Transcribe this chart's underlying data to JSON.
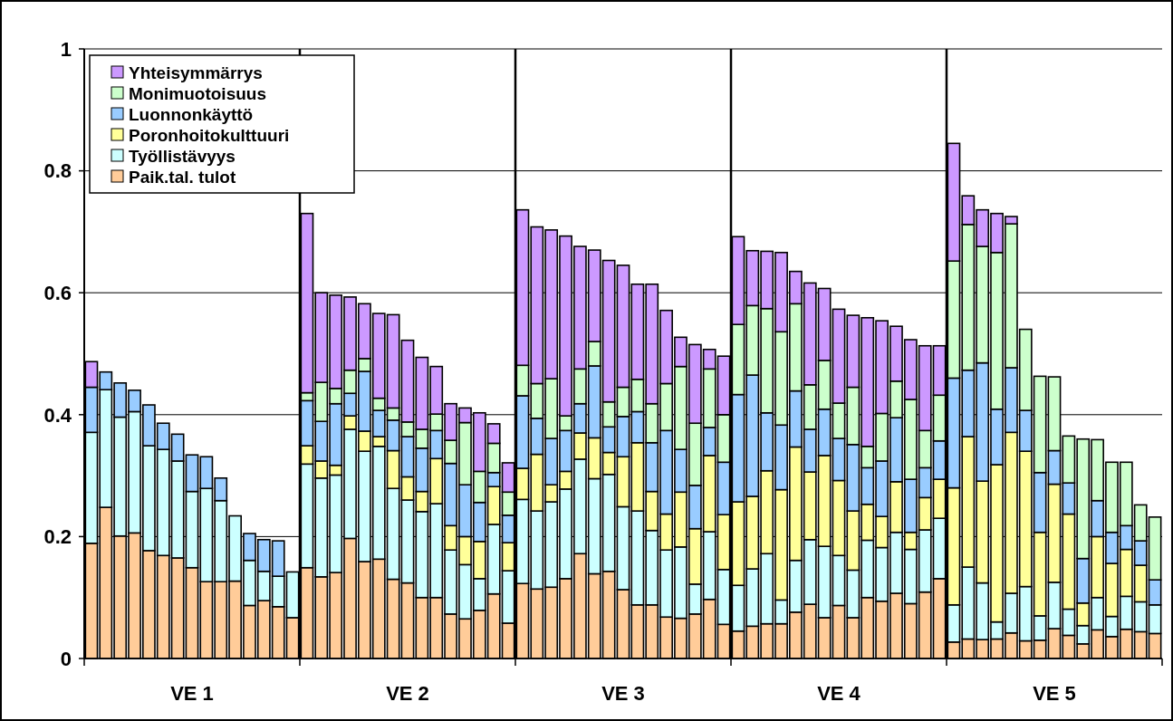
{
  "chart_data": {
    "type": "bar",
    "stacked": true,
    "categories": [
      null,
      null,
      null,
      null,
      null,
      null,
      null,
      "VE 1",
      null,
      null,
      null,
      null,
      null,
      null,
      null,
      null,
      null,
      null,
      null,
      null,
      null,
      null,
      "VE 2",
      null,
      null,
      null,
      null,
      null,
      null,
      null,
      null,
      null,
      null,
      null,
      null,
      null,
      null,
      "VE 3",
      null,
      null,
      null,
      null,
      null,
      null,
      null,
      null,
      null,
      null,
      null,
      null,
      null,
      null,
      "VE 4",
      null,
      null,
      null,
      null,
      null,
      null,
      null,
      null,
      null,
      null,
      null,
      null,
      null,
      null,
      "VE 5",
      null,
      null,
      null,
      null,
      null,
      null,
      null
    ],
    "ylim": [
      0,
      1
    ],
    "yticks": [
      0,
      0.2,
      0.4,
      0.6,
      0.8,
      1
    ],
    "grid": "y",
    "legend": "top left",
    "series": [
      {
        "name": "Paik.tal. tulot",
        "color": "#ffcc99",
        "values": [
          0.189,
          0.248,
          0.201,
          0.206,
          0.177,
          0.169,
          0.165,
          0.149,
          0.126,
          0.126,
          0.127,
          0.087,
          0.095,
          0.085,
          0.067,
          0.149,
          0.134,
          0.141,
          0.197,
          0.159,
          0.163,
          0.13,
          0.124,
          0.1,
          0.1,
          0.073,
          0.065,
          0.079,
          0.106,
          0.058,
          0.123,
          0.114,
          0.117,
          0.131,
          0.172,
          0.139,
          0.143,
          0.113,
          0.088,
          0.088,
          0.068,
          0.066,
          0.073,
          0.097,
          0.056,
          0.045,
          0.053,
          0.057,
          0.057,
          0.076,
          0.089,
          0.067,
          0.087,
          0.067,
          0.1,
          0.094,
          0.107,
          0.09,
          0.109,
          0.131,
          0.027,
          0.032,
          0.031,
          0.032,
          0.042,
          0.029,
          0.03,
          0.049,
          0.038,
          0.024,
          0.047,
          0.036,
          0.048,
          0.044,
          0.041
        ]
      },
      {
        "name": "Työllistävyys",
        "color": "#ccffff",
        "values": [
          0.182,
          0.193,
          0.195,
          0.199,
          0.172,
          0.174,
          0.159,
          0.125,
          0.153,
          0.133,
          0.107,
          0.074,
          0.048,
          0.05,
          0.075,
          0.17,
          0.162,
          0.16,
          0.179,
          0.181,
          0.185,
          0.149,
          0.136,
          0.141,
          0.154,
          0.105,
          0.089,
          0.052,
          0.114,
          0.086,
          0.138,
          0.128,
          0.14,
          0.147,
          0.155,
          0.156,
          0.159,
          0.136,
          0.154,
          0.122,
          0.11,
          0.117,
          0.049,
          0.111,
          0.09,
          0.075,
          0.094,
          0.115,
          0.039,
          0.085,
          0.106,
          0.117,
          0.082,
          0.078,
          0.094,
          0.088,
          0.1,
          0.089,
          0.102,
          0.099,
          0.061,
          0.118,
          0.093,
          0.028,
          0.065,
          0.089,
          0.04,
          0.076,
          0.043,
          0.03,
          0.053,
          0.033,
          0.054,
          0.049,
          0.047
        ]
      },
      {
        "name": "Poronhoitokulttuuri",
        "color": "#ffff99",
        "values": [
          0,
          0,
          0,
          0,
          0,
          0,
          0,
          0,
          0,
          0,
          0,
          0,
          0,
          0,
          0,
          0.03,
          0.028,
          0.016,
          0.022,
          0.033,
          0.016,
          0.062,
          0.038,
          0.033,
          0.074,
          0.04,
          0.046,
          0.061,
          0.062,
          0.046,
          0.051,
          0.093,
          0.028,
          0.029,
          0.043,
          0.067,
          0.036,
          0.082,
          0.112,
          0.064,
          0.059,
          0.09,
          0.091,
          0.125,
          0.09,
          0.137,
          0.119,
          0.136,
          0.181,
          0.186,
          0.111,
          0.149,
          0.123,
          0.097,
          0.059,
          0.051,
          0.083,
          0.028,
          0.053,
          0.064,
          0.192,
          0.214,
          0.167,
          0.258,
          0.264,
          0.222,
          0.137,
          0.161,
          0.156,
          0.037,
          0.1,
          0.087,
          0.077,
          0.06,
          0
        ]
      },
      {
        "name": "Luonnonkäyttö",
        "color": "#99ccff",
        "values": [
          0.074,
          0.029,
          0.056,
          0.035,
          0.067,
          0.043,
          0.044,
          0.06,
          0.052,
          0.037,
          0,
          0.044,
          0.052,
          0.058,
          0,
          0.074,
          0.065,
          0.101,
          0.037,
          0.098,
          0.043,
          0.05,
          0.066,
          0.071,
          0.046,
          0.102,
          0.085,
          0.064,
          0.023,
          0.045,
          0.119,
          0.059,
          0.076,
          0.067,
          0.048,
          0.118,
          0.042,
          0.066,
          0.051,
          0.08,
          0.137,
          0.07,
          0.071,
          0.046,
          0.086,
          0.176,
          0.199,
          0.095,
          0.106,
          0.092,
          0.07,
          0.076,
          0.069,
          0.109,
          0.06,
          0.091,
          0.105,
          0.087,
          0.049,
          0.063,
          0.18,
          0.109,
          0.194,
          0.091,
          0.106,
          0.067,
          0.098,
          0.055,
          0.051,
          0.073,
          0.059,
          0.051,
          0.039,
          0.04,
          0.041
        ]
      },
      {
        "name": "Monimuotoisuus",
        "color": "#ccffcc",
        "values": [
          0,
          0,
          0,
          0,
          0,
          0,
          0,
          0,
          0,
          0,
          0,
          0,
          0,
          0,
          0,
          0.013,
          0.064,
          0.025,
          0.038,
          0.021,
          0.02,
          0.02,
          0.024,
          0.031,
          0.027,
          0.038,
          0.102,
          0.051,
          0.048,
          0.038,
          0.05,
          0.057,
          0.098,
          0.024,
          0.057,
          0.04,
          0.041,
          0.048,
          0.053,
          0.064,
          0.077,
          0.136,
          0.102,
          0.096,
          0.078,
          0.115,
          0.114,
          0.171,
          0.153,
          0.143,
          0.073,
          0.08,
          0.058,
          0.094,
          0.035,
          0.078,
          0.06,
          0.131,
          0.061,
          0.075,
          0.192,
          0.239,
          0.191,
          0.257,
          0.236,
          0.133,
          0.158,
          0.121,
          0.077,
          0.196,
          0.1,
          0.115,
          0.104,
          0.059,
          0.103
        ]
      },
      {
        "name": "Yhteisymmärrys",
        "color": "#cc99ff",
        "values": [
          0.042,
          0,
          0,
          0,
          0,
          0,
          0,
          0,
          0,
          0,
          0,
          0,
          0,
          0,
          0,
          0.294,
          0.147,
          0.153,
          0.12,
          0.09,
          0.139,
          0.153,
          0.134,
          0.118,
          0.078,
          0.06,
          0.024,
          0.096,
          0.032,
          0.048,
          0.255,
          0.257,
          0.244,
          0.295,
          0.201,
          0.15,
          0.232,
          0.2,
          0.156,
          0.196,
          0.12,
          0.048,
          0.129,
          0.032,
          0.096,
          0.144,
          0.09,
          0.094,
          0.13,
          0.053,
          0.167,
          0.118,
          0.154,
          0.118,
          0.211,
          0.152,
          0.09,
          0.098,
          0.139,
          0.081,
          0.193,
          0.047,
          0.06,
          0.064,
          0.012,
          0,
          0,
          0,
          0,
          0,
          0,
          0,
          0,
          0,
          0
        ]
      }
    ]
  }
}
